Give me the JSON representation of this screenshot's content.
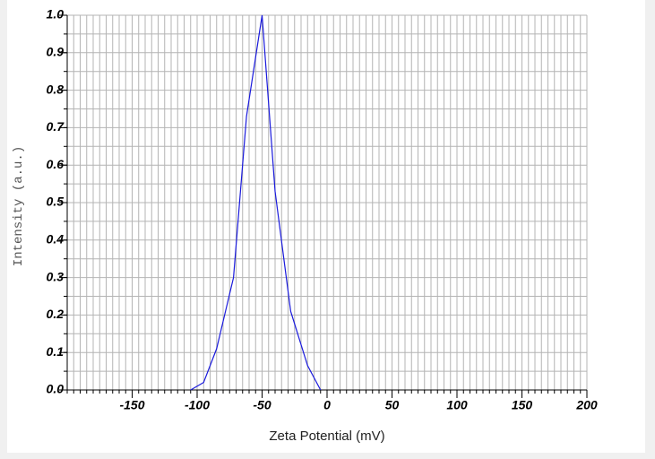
{
  "chart_data": {
    "type": "line",
    "xlabel": "Zeta Potential (mV)",
    "ylabel": "Intensity (a.u.)",
    "x": [
      -105,
      -95,
      -85,
      -72,
      -62,
      -50,
      -40,
      -28,
      -15,
      -5
    ],
    "series": [
      {
        "name": "Intensity",
        "color": "#1a1adc",
        "values": [
          0.0,
          0.02,
          0.11,
          0.3,
          0.73,
          1.0,
          0.53,
          0.21,
          0.065,
          0.0
        ]
      }
    ],
    "xlim": [
      -200,
      200
    ],
    "xticks": [
      -150,
      -100,
      -50,
      0,
      50,
      100,
      150,
      200
    ],
    "ylim": [
      0,
      1
    ],
    "yticks": [
      {
        "value": 0,
        "label": "0.0"
      },
      {
        "value": 0.1,
        "label": "0.1"
      },
      {
        "value": 0.2,
        "label": "0.2"
      },
      {
        "value": 0.3,
        "label": "0.3"
      },
      {
        "value": 0.4,
        "label": "0.4"
      },
      {
        "value": 0.5,
        "label": "0.5"
      },
      {
        "value": 0.6,
        "label": "0.6"
      },
      {
        "value": 0.7,
        "label": "0.7"
      },
      {
        "value": 0.8,
        "label": "0.8"
      },
      {
        "value": 0.9,
        "label": "0.9"
      },
      {
        "value": 1,
        "label": "1.0"
      }
    ],
    "x_minor_ticks": [
      -200,
      -195,
      -190,
      -185,
      -180,
      -175,
      -170,
      -165,
      -160,
      -155,
      -150,
      -145,
      -140,
      -135,
      -130,
      -125,
      -120,
      -115,
      -110,
      -105,
      -100,
      -95,
      -90,
      -85,
      -80,
      -75,
      -70,
      -65,
      -60,
      -55,
      -50,
      -45,
      -40,
      -35,
      -30,
      -25,
      -20,
      -15,
      -10,
      -5,
      0,
      5,
      10,
      15,
      20,
      25,
      30,
      35,
      40,
      45,
      50,
      55,
      60,
      65,
      70,
      75,
      80,
      85,
      90,
      95,
      100,
      105,
      110,
      115,
      120,
      125,
      130,
      135,
      140,
      145,
      150,
      155,
      160,
      165,
      170,
      175,
      180,
      185,
      190,
      195,
      200
    ],
    "y_minor_ticks": [
      0,
      0.05,
      0.1,
      0.15,
      0.2,
      0.25,
      0.3,
      0.35,
      0.4,
      0.45,
      0.5,
      0.55,
      0.6,
      0.65,
      0.7,
      0.75,
      0.8,
      0.85,
      0.9,
      0.95,
      1
    ],
    "grid": true
  }
}
